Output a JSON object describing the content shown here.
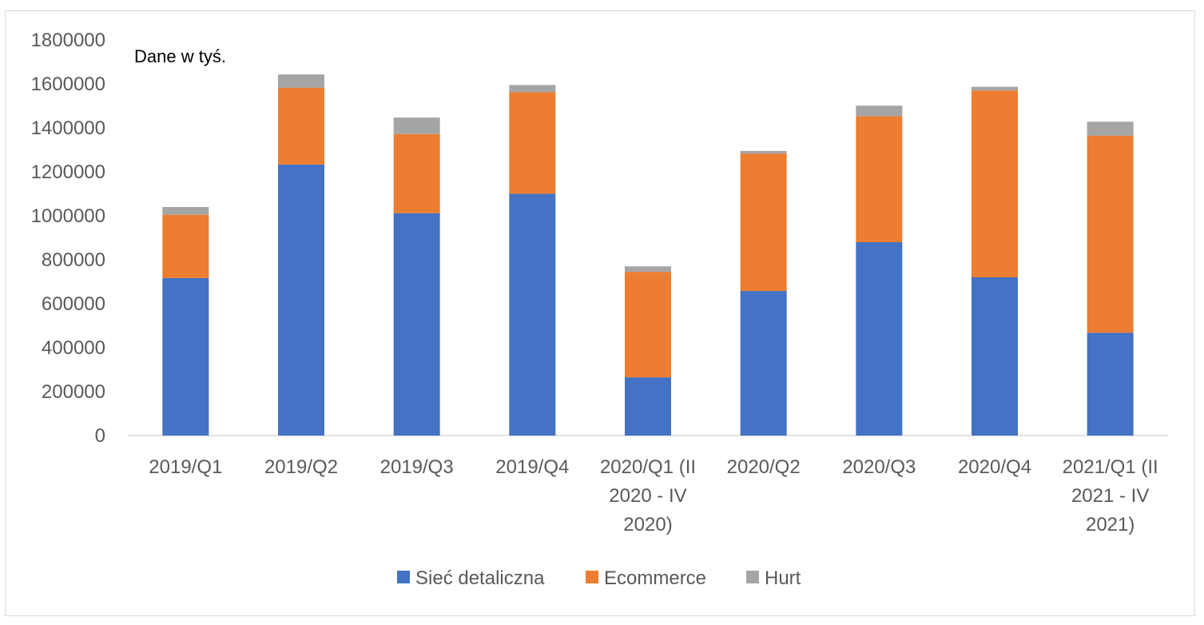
{
  "chart_data": {
    "type": "bar",
    "stacked": true,
    "annotation": "Dane w tyś.",
    "categories": [
      [
        "2019/Q1"
      ],
      [
        "2019/Q2"
      ],
      [
        "2019/Q3"
      ],
      [
        "2019/Q4"
      ],
      [
        "2020/Q1 (II",
        "2020 - IV",
        "2020)"
      ],
      [
        "2020/Q2"
      ],
      [
        "2020/Q3"
      ],
      [
        "2020/Q4"
      ],
      [
        "2021/Q1 (II",
        "2021 - IV",
        "2021)"
      ]
    ],
    "series": [
      {
        "name": "Sieć detaliczna",
        "color": "#4472C4",
        "values": [
          717000,
          1233000,
          1012000,
          1100000,
          265000,
          658000,
          880000,
          720000,
          468000
        ]
      },
      {
        "name": "Ecommerce",
        "color": "#ED7D31",
        "values": [
          288000,
          350000,
          360000,
          462000,
          480000,
          625000,
          573000,
          850000,
          897000
        ]
      },
      {
        "name": "Hurt",
        "color": "#A5A5A5",
        "values": [
          35000,
          60000,
          75000,
          33000,
          25000,
          12000,
          48000,
          17000,
          63000
        ]
      }
    ],
    "ylim": [
      0,
      1800000
    ],
    "yticks": [
      "0",
      "200000",
      "400000",
      "600000",
      "800000",
      "1000000",
      "1200000",
      "1400000",
      "1600000",
      "1800000"
    ],
    "legend_position": "bottom",
    "grid": false
  }
}
